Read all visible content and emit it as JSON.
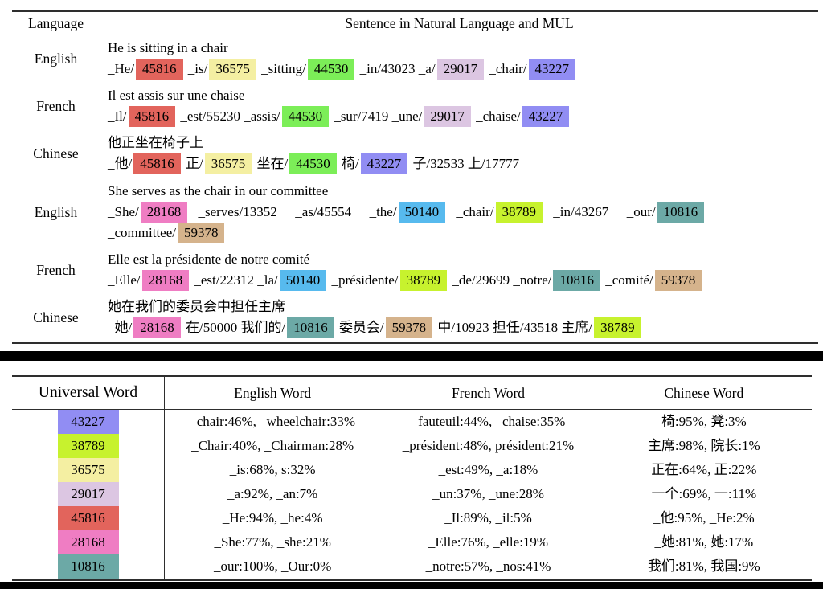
{
  "colors": {
    "45816": "#e2645c",
    "36575": "#f4efa2",
    "44530": "#7cee58",
    "29017": "#dcc6e2",
    "43227": "#918df3",
    "28168": "#ef7dc3",
    "50140": "#57baee",
    "38789": "#c7f22e",
    "10816": "#6ca9a6",
    "59378": "#d5b38c"
  },
  "table1": {
    "headers": {
      "language": "Language",
      "sentence": "Sentence in Natural Language and MUL"
    },
    "groups": [
      {
        "rows": [
          {
            "language": "English",
            "sentence": "He is sitting in a chair",
            "lines": [
              [
                {
                  "t": "_He/"
                },
                {
                  "t": "45816",
                  "c": "45816"
                },
                {
                  "t": " _is/"
                },
                {
                  "t": "36575",
                  "c": "36575"
                },
                {
                  "t": " _sitting/"
                },
                {
                  "t": "44530",
                  "c": "44530"
                },
                {
                  "t": " _in/43023 _a/"
                },
                {
                  "t": "29017",
                  "c": "29017"
                },
                {
                  "t": " _chair/"
                },
                {
                  "t": "43227",
                  "c": "43227"
                }
              ]
            ]
          },
          {
            "language": "French",
            "sentence": "Il est assis sur une chaise",
            "lines": [
              [
                {
                  "t": "_Il/"
                },
                {
                  "t": "45816",
                  "c": "45816"
                },
                {
                  "t": " _est/55230 _assis/"
                },
                {
                  "t": "44530",
                  "c": "44530"
                },
                {
                  "t": " _sur/7419 _une/"
                },
                {
                  "t": "29017",
                  "c": "29017"
                },
                {
                  "t": " _chaise/"
                },
                {
                  "t": "43227",
                  "c": "43227"
                }
              ]
            ]
          },
          {
            "language": "Chinese",
            "sentence": "他正坐在椅子上",
            "lines": [
              [
                {
                  "t": "_他/"
                },
                {
                  "t": "45816",
                  "c": "45816"
                },
                {
                  "t": " 正/"
                },
                {
                  "t": "36575",
                  "c": "36575"
                },
                {
                  "t": " 坐在/"
                },
                {
                  "t": "44530",
                  "c": "44530"
                },
                {
                  "t": " 椅/"
                },
                {
                  "t": "43227",
                  "c": "43227"
                },
                {
                  "t": " 子/32533 上/17777"
                }
              ]
            ]
          }
        ]
      },
      {
        "rows": [
          {
            "language": "English",
            "sentence": "She serves as the chair in our committee",
            "lines": [
              [
                {
                  "t": "_She/"
                },
                {
                  "t": "28168",
                  "c": "28168"
                },
                {
                  "t": " _serves/13352  _as/45554  _the/"
                },
                {
                  "t": "50140",
                  "c": "50140"
                },
                {
                  "t": " _chair/"
                },
                {
                  "t": "38789",
                  "c": "38789"
                },
                {
                  "t": " _in/43267  _our/"
                },
                {
                  "t": "10816",
                  "c": "10816"
                }
              ],
              [
                {
                  "t": "_committee/"
                },
                {
                  "t": "59378",
                  "c": "59378"
                }
              ]
            ]
          },
          {
            "language": "French",
            "sentence": "Elle est la présidente de notre comité",
            "lines": [
              [
                {
                  "t": "_Elle/"
                },
                {
                  "t": "28168",
                  "c": "28168"
                },
                {
                  "t": " _est/22312 _la/"
                },
                {
                  "t": "50140",
                  "c": "50140"
                },
                {
                  "t": " _présidente/"
                },
                {
                  "t": "38789",
                  "c": "38789"
                },
                {
                  "t": " _de/29699 _notre/"
                },
                {
                  "t": "10816",
                  "c": "10816"
                },
                {
                  "t": " _comité/"
                },
                {
                  "t": "59378",
                  "c": "59378"
                }
              ]
            ]
          },
          {
            "language": "Chinese",
            "sentence": "她在我们的委员会中担任主席",
            "lines": [
              [
                {
                  "t": "_她/"
                },
                {
                  "t": "28168",
                  "c": "28168"
                },
                {
                  "t": " 在/50000 我们的/"
                },
                {
                  "t": "10816",
                  "c": "10816"
                },
                {
                  "t": " 委员会/"
                },
                {
                  "t": "59378",
                  "c": "59378"
                },
                {
                  "t": " 中/10923 担任/43518 主席/"
                },
                {
                  "t": "38789",
                  "c": "38789"
                }
              ]
            ]
          }
        ]
      }
    ]
  },
  "table2": {
    "headers": [
      "Universal Word",
      "English Word",
      "French Word",
      "Chinese Word"
    ],
    "rows": [
      {
        "id": "43227",
        "english": "_chair:46%, _wheelchair:33%",
        "french": "_fauteuil:44%, _chaise:35%",
        "chinese": "椅:95%, 凳:3%"
      },
      {
        "id": "38789",
        "english": "_Chair:40%, _Chairman:28%",
        "french": "_président:48%, président:21%",
        "chinese": "主席:98%, 院长:1%"
      },
      {
        "id": "36575",
        "english": "_is:68%, s:32%",
        "french": "_est:49%, _a:18%",
        "chinese": "正在:64%, 正:22%"
      },
      {
        "id": "29017",
        "english": "_a:92%, _an:7%",
        "french": "_un:37%, _une:28%",
        "chinese": "一个:69%, 一:11%"
      },
      {
        "id": "45816",
        "english": "_He:94%, _he:4%",
        "french": "_Il:89%, _il:5%",
        "chinese": "_他:95%, _He:2%"
      },
      {
        "id": "28168",
        "english": "_She:77%, _she:21%",
        "french": "_Elle:76%, _elle:19%",
        "chinese": "_她:81%, 她:17%"
      },
      {
        "id": "10816",
        "english": "_our:100%, _Our:0%",
        "french": "_notre:57%, _nos:41%",
        "chinese": "我们:81%, 我国:9%"
      }
    ]
  }
}
